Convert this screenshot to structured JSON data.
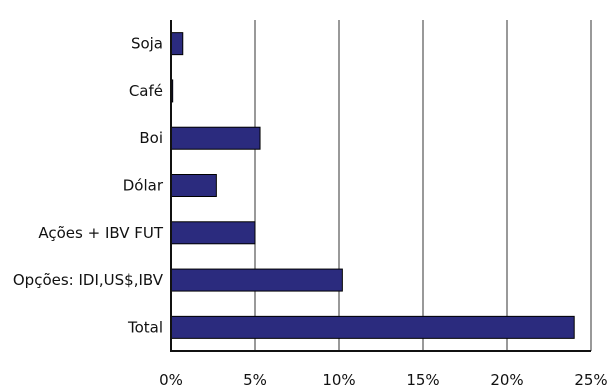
{
  "chart_data": {
    "type": "bar",
    "orientation": "horizontal",
    "title": "",
    "xlabel": "",
    "ylabel": "",
    "categories": [
      "Soja",
      "Café",
      "Boi",
      "Dólar",
      "Ações + IBV FUT",
      "Opções: IDI,US$,IBV",
      "Total"
    ],
    "values": [
      0.7,
      0.1,
      5.3,
      2.7,
      5.0,
      10.2,
      24.0
    ],
    "xlim": [
      0,
      25
    ],
    "x_ticks": [
      0,
      5,
      10,
      15,
      20,
      25
    ],
    "x_tick_labels": [
      "0%",
      "5%",
      "10%",
      "15%",
      "20%",
      "25%"
    ],
    "grid": "vertical",
    "legend": "none",
    "bar_color": "#2b2b7e"
  }
}
